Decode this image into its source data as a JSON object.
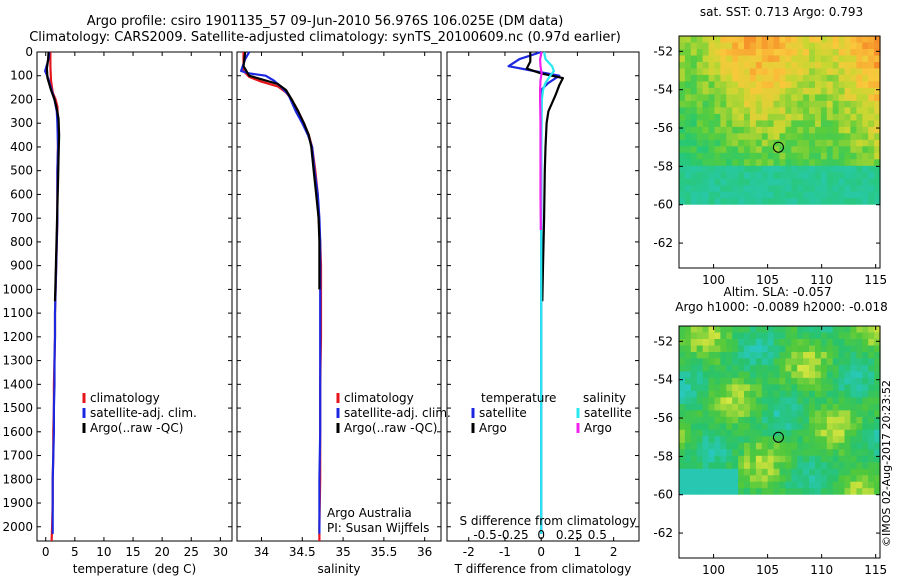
{
  "titles": {
    "line1": "Argo profile: csiro 1901135_57 09-Jun-2010 56.976S 106.025E (DM data)",
    "line2": "Climatology: CARS2009. Satellite-adjusted climatology: synTS_20100609.nc (0.97d earlier)"
  },
  "footer": "©IMOS 02-Aug-2017 20:23:52",
  "colors": {
    "red": "#e8141c",
    "blue": "#1c28e0",
    "black": "#000000",
    "cyan": "#28e8f0",
    "magenta": "#f020f0"
  },
  "chart_data": [
    {
      "id": "temperature",
      "type": "line",
      "xlabel": "temperature (deg C)",
      "xlim": [
        -1.5,
        32
      ],
      "ylim": [
        0,
        2060
      ],
      "xticks": [
        0,
        5,
        10,
        15,
        20,
        25,
        30
      ],
      "yticks": [
        0,
        100,
        200,
        300,
        400,
        500,
        600,
        700,
        800,
        900,
        1000,
        1100,
        1200,
        1300,
        1400,
        1500,
        1600,
        1700,
        1800,
        1900,
        2000
      ],
      "legend": [
        "climatology",
        "satellite-adj. clim.",
        "Argo(..raw -QC)"
      ],
      "legend_position": "lower-left",
      "series": [
        {
          "name": "climatology",
          "color": "red",
          "points": [
            [
              0.8,
              0
            ],
            [
              0.8,
              60
            ],
            [
              0.9,
              120
            ],
            [
              1.2,
              170
            ],
            [
              1.7,
              200
            ],
            [
              2.0,
              230
            ],
            [
              2.1,
              300
            ],
            [
              2.1,
              400
            ],
            [
              2.0,
              500
            ],
            [
              2.0,
              600
            ],
            [
              2.0,
              700
            ],
            [
              1.9,
              800
            ],
            [
              1.8,
              900
            ],
            [
              1.7,
              1000
            ],
            [
              1.6,
              1100
            ],
            [
              1.6,
              1200
            ],
            [
              1.5,
              1300
            ],
            [
              1.4,
              1400
            ],
            [
              1.4,
              1500
            ],
            [
              1.3,
              1600
            ],
            [
              1.3,
              1700
            ],
            [
              1.2,
              1800
            ],
            [
              1.2,
              1900
            ],
            [
              1.1,
              2000
            ],
            [
              1.0,
              2060
            ]
          ]
        },
        {
          "name": "satellite-adj. clim.",
          "color": "blue",
          "points": [
            [
              0.6,
              0
            ],
            [
              0.5,
              30
            ],
            [
              -0.1,
              80
            ],
            [
              0.4,
              110
            ],
            [
              1.0,
              160
            ],
            [
              1.5,
              200
            ],
            [
              1.9,
              250
            ],
            [
              2.0,
              300
            ],
            [
              2.1,
              400
            ],
            [
              2.0,
              500
            ],
            [
              2.0,
              600
            ],
            [
              2.0,
              700
            ],
            [
              1.9,
              800
            ],
            [
              1.8,
              900
            ],
            [
              1.7,
              1000
            ],
            [
              1.6,
              1100
            ],
            [
              1.6,
              1200
            ],
            [
              1.5,
              1300
            ],
            [
              1.5,
              1400
            ],
            [
              1.4,
              1500
            ],
            [
              1.4,
              1600
            ],
            [
              1.3,
              1700
            ],
            [
              1.2,
              1800
            ],
            [
              1.2,
              1900
            ],
            [
              1.2,
              2000
            ],
            [
              1.2,
              2030
            ]
          ]
        },
        {
          "name": "Argo(..raw -QC)",
          "color": "black",
          "points": [
            [
              0.5,
              0
            ],
            [
              0.4,
              30
            ],
            [
              0.2,
              70
            ],
            [
              0.3,
              110
            ],
            [
              0.9,
              160
            ],
            [
              1.5,
              200
            ],
            [
              1.9,
              240
            ],
            [
              2.2,
              280
            ],
            [
              2.3,
              350
            ],
            [
              2.2,
              450
            ],
            [
              2.1,
              550
            ],
            [
              2.0,
              650
            ],
            [
              1.9,
              750
            ],
            [
              1.8,
              850
            ],
            [
              1.7,
              950
            ],
            [
              1.6,
              1050
            ]
          ]
        }
      ]
    },
    {
      "id": "salinity",
      "type": "line",
      "xlabel": "salinity",
      "xlim": [
        33.7,
        36.2
      ],
      "ylim": [
        0,
        2060
      ],
      "xticks": [
        34,
        34.5,
        35,
        35.5,
        36
      ],
      "xtick_labels": [
        "34",
        "34.5",
        "35",
        "35.5",
        "36"
      ],
      "legend": [
        "climatology",
        "satellite-adj. clim.",
        "Argo(..raw -QC)"
      ],
      "legend_position": "lower-right",
      "annotation": [
        "Argo Australia",
        "PI: Susan Wijffels"
      ],
      "series": [
        {
          "name": "climatology",
          "color": "red",
          "points": [
            [
              33.78,
              0
            ],
            [
              33.78,
              80
            ],
            [
              33.85,
              105
            ],
            [
              34.0,
              125
            ],
            [
              34.2,
              145
            ],
            [
              34.3,
              170
            ],
            [
              34.37,
              200
            ],
            [
              34.45,
              250
            ],
            [
              34.52,
              300
            ],
            [
              34.58,
              350
            ],
            [
              34.62,
              400
            ],
            [
              34.66,
              500
            ],
            [
              34.69,
              600
            ],
            [
              34.7,
              700
            ],
            [
              34.72,
              800
            ],
            [
              34.73,
              900
            ],
            [
              34.73,
              1000
            ],
            [
              34.73,
              1200
            ],
            [
              34.72,
              1400
            ],
            [
              34.72,
              1600
            ],
            [
              34.72,
              1800
            ],
            [
              34.71,
              2000
            ],
            [
              34.71,
              2060
            ]
          ]
        },
        {
          "name": "satellite-adj. clim.",
          "color": "blue",
          "points": [
            [
              33.85,
              0
            ],
            [
              33.8,
              30
            ],
            [
              33.75,
              80
            ],
            [
              33.85,
              90
            ],
            [
              34.05,
              100
            ],
            [
              34.15,
              120
            ],
            [
              34.25,
              150
            ],
            [
              34.33,
              180
            ],
            [
              34.42,
              250
            ],
            [
              34.5,
              300
            ],
            [
              34.57,
              350
            ],
            [
              34.62,
              400
            ],
            [
              34.65,
              500
            ],
            [
              34.69,
              600
            ],
            [
              34.71,
              700
            ],
            [
              34.72,
              800
            ],
            [
              34.72,
              1000
            ],
            [
              34.72,
              1200
            ],
            [
              34.72,
              1400
            ],
            [
              34.72,
              1600
            ],
            [
              34.71,
              1800
            ],
            [
              34.71,
              2000
            ],
            [
              34.71,
              2030
            ]
          ]
        },
        {
          "name": "Argo(..raw -QC)",
          "color": "black",
          "points": [
            [
              33.8,
              0
            ],
            [
              33.78,
              60
            ],
            [
              33.85,
              100
            ],
            [
              34.0,
              115
            ],
            [
              34.2,
              135
            ],
            [
              34.3,
              160
            ],
            [
              34.37,
              200
            ],
            [
              34.45,
              250
            ],
            [
              34.52,
              300
            ],
            [
              34.58,
              350
            ],
            [
              34.61,
              400
            ],
            [
              34.64,
              500
            ],
            [
              34.67,
              600
            ],
            [
              34.7,
              700
            ],
            [
              34.71,
              800
            ],
            [
              34.71,
              900
            ],
            [
              34.71,
              1000
            ]
          ]
        }
      ]
    },
    {
      "id": "difference",
      "type": "line",
      "xlabel": "T difference from climatology",
      "xlabel_top": "S difference from climatology",
      "xlim": [
        -2.6,
        2.7
      ],
      "ylim": [
        0,
        2060
      ],
      "xticks": [
        -2,
        -1,
        0,
        1,
        2
      ],
      "s_xticks": [
        -0.5,
        -0.25,
        0,
        0.25,
        0.5
      ],
      "s_xtick_labels": [
        "-0.5",
        "-0.25",
        "0",
        "0.25",
        "0.5"
      ],
      "legend_groups": [
        {
          "title": "temperature",
          "items": [
            "satellite",
            "Argo"
          ]
        },
        {
          "title": "salinity",
          "items": [
            "satellite",
            "Argo"
          ]
        }
      ],
      "series": [
        {
          "name": "temperature satellite",
          "color": "blue",
          "points": [
            [
              0.0,
              0
            ],
            [
              -0.6,
              30
            ],
            [
              -0.9,
              60
            ],
            [
              -0.2,
              80
            ],
            [
              0.5,
              100
            ],
            [
              0.2,
              130
            ],
            [
              0.0,
              160
            ],
            [
              0.0,
              300
            ],
            [
              0.0,
              700
            ],
            [
              0.0,
              1200
            ],
            [
              0.0,
              1700
            ],
            [
              0.0,
              2030
            ]
          ]
        },
        {
          "name": "temperature Argo",
          "color": "black",
          "points": [
            [
              -0.3,
              0
            ],
            [
              -0.3,
              40
            ],
            [
              -0.4,
              70
            ],
            [
              0.0,
              90
            ],
            [
              0.6,
              110
            ],
            [
              0.5,
              140
            ],
            [
              0.4,
              180
            ],
            [
              0.2,
              250
            ],
            [
              0.15,
              300
            ],
            [
              0.12,
              400
            ],
            [
              0.1,
              500
            ],
            [
              0.08,
              700
            ],
            [
              0.05,
              900
            ],
            [
              0.03,
              1050
            ]
          ]
        },
        {
          "name": "salinity satellite",
          "color": "cyan",
          "points": [
            [
              0.08,
              0
            ],
            [
              0.12,
              30
            ],
            [
              0.3,
              60
            ],
            [
              0.35,
              80
            ],
            [
              0.25,
              100
            ],
            [
              0.12,
              130
            ],
            [
              0.05,
              160
            ],
            [
              0.02,
              200
            ],
            [
              0.01,
              300
            ],
            [
              0.0,
              500
            ],
            [
              0.0,
              1000
            ],
            [
              0.0,
              1500
            ],
            [
              0.0,
              2030
            ]
          ]
        },
        {
          "name": "salinity Argo",
          "color": "magenta",
          "points": [
            [
              0.01,
              0
            ],
            [
              -0.03,
              30
            ],
            [
              -0.02,
              60
            ],
            [
              0.01,
              90
            ],
            [
              -0.02,
              120
            ],
            [
              -0.03,
              160
            ],
            [
              -0.03,
              200
            ],
            [
              -0.02,
              300
            ],
            [
              -0.02,
              400
            ],
            [
              -0.02,
              600
            ],
            [
              -0.01,
              750
            ]
          ]
        }
      ]
    },
    {
      "id": "sst_map",
      "type": "heatmap",
      "title": "sat. SST: 0.713 Argo: 0.793",
      "xticks": [
        100,
        105,
        110,
        115
      ],
      "yticks": [
        -52,
        -54,
        -56,
        -58,
        -60,
        -62
      ],
      "xlim": [
        96.8,
        115.4
      ],
      "ylim": [
        -63.3,
        -51.2
      ],
      "data_extent_lat": [
        -60,
        -51.2
      ],
      "marker": {
        "lon": 106.0,
        "lat": -57.0
      }
    },
    {
      "id": "sla_map",
      "type": "heatmap",
      "title": "Altim. SLA: -0.057",
      "subtitle": "Argo h1000: -0.0089 h2000: -0.018",
      "xticks": [
        100,
        105,
        110,
        115
      ],
      "yticks": [
        -52,
        -54,
        -56,
        -58,
        -60,
        -62
      ],
      "xlim": [
        96.8,
        115.4
      ],
      "ylim": [
        -63.3,
        -51.2
      ],
      "data_extent_lat": [
        -60,
        -51.2
      ],
      "marker": {
        "lon": 106.0,
        "lat": -57.0
      }
    }
  ]
}
